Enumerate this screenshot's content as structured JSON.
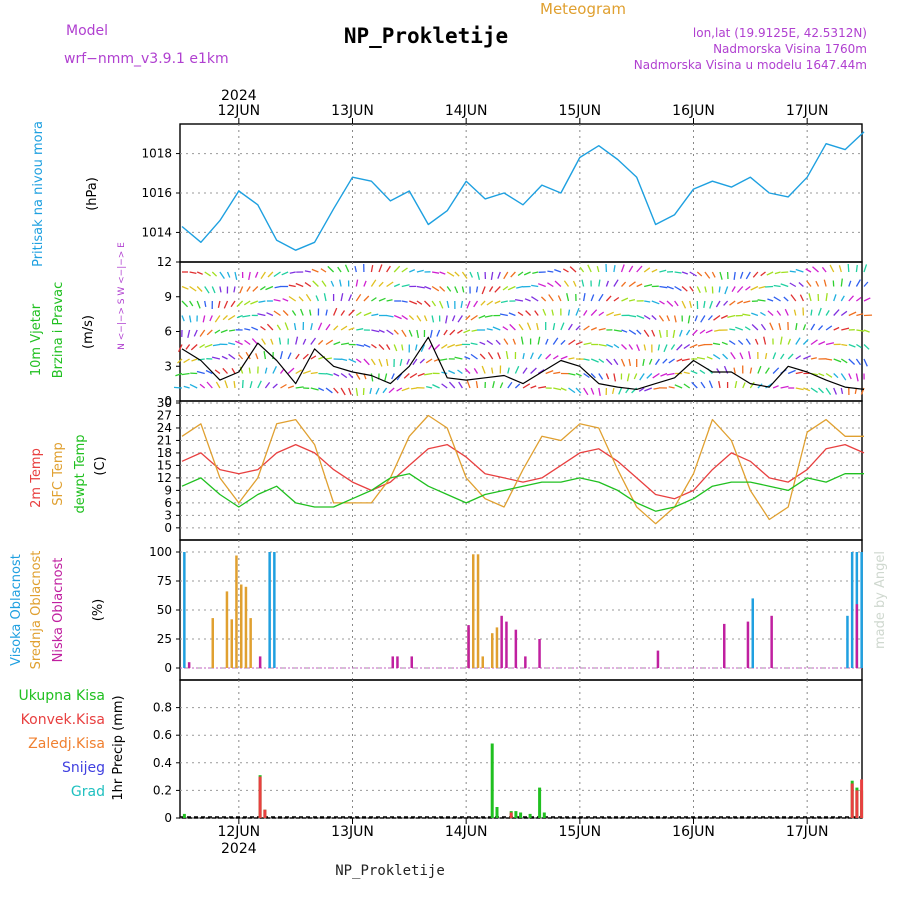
{
  "header": {
    "title": "NP_Prokletije",
    "subtitle": "Meteogram",
    "model_label": "Model",
    "model_name": "wrf−nmm_v3.9.1  e1km",
    "coords": "lon,lat (19.9125E, 42.5312N)",
    "altitude": "Nadmorska Visina 1760m",
    "model_altitude": "Nadmorska Visina u modelu 1647.44m",
    "footer": "NP_Prokletije",
    "watermark": "made by Angel"
  },
  "colors": {
    "pressure": "#1ea0e0",
    "temp2m": "#e84040",
    "sfc": "#e0a030",
    "dewpt": "#20c020",
    "high_cloud": "#20a0e0",
    "mid_cloud": "#e0a030",
    "low_cloud": "#c020a0",
    "total_precip": "#20c020",
    "conv_precip": "#e84040",
    "frozen_precip": "#f08030",
    "snow": "#4040e0",
    "graupel": "#20c0c0",
    "purple_text": "#b040d0",
    "orange_text": "#e0a030"
  },
  "chart_data": [
    {
      "type": "line",
      "name": "pressure",
      "ylabel_lines": [
        "Pritisak na nivou mora",
        "(hPa)"
      ],
      "ylim": [
        1012.5,
        1019.5
      ],
      "yticks": [
        1014,
        1016,
        1018
      ],
      "x_dates": [
        "2024",
        "12JUN",
        "13JUN",
        "14JUN",
        "15JUN",
        "16JUN",
        "17JUN"
      ],
      "x_hours": [
        0,
        4,
        8,
        12,
        16,
        20,
        24,
        28,
        32,
        36,
        40,
        44,
        48,
        52,
        56,
        60,
        64,
        68,
        72,
        76,
        80,
        84,
        88,
        92,
        96,
        100,
        104,
        108,
        112,
        116,
        120,
        124,
        128,
        132,
        136,
        140,
        144
      ],
      "series": [
        {
          "values": [
            1014.3,
            1013.5,
            1014.6,
            1016.1,
            1015.4,
            1013.6,
            1013.1,
            1013.5,
            1015.2,
            1016.8,
            1016.6,
            1015.6,
            1016.1,
            1014.4,
            1015.1,
            1016.6,
            1015.7,
            1016.0,
            1015.4,
            1016.4,
            1016.0,
            1017.8,
            1018.4,
            1017.7,
            1016.8,
            1014.4,
            1014.9,
            1016.2,
            1016.6,
            1016.3,
            1016.8,
            1016.0,
            1015.8,
            1016.8,
            1018.5,
            1018.2,
            1019.1
          ]
        }
      ]
    },
    {
      "type": "line",
      "name": "wind",
      "ylabel_lines": [
        "10m Vjetar",
        "Brzina i Pravac",
        "(m/s)"
      ],
      "compass_label": "N <−|−> S   W <−|−> E",
      "ylim": [
        0,
        12
      ],
      "yticks": [
        0,
        3,
        6,
        9,
        12
      ],
      "series": [
        {
          "values": [
            4.5,
            3.5,
            1.8,
            2.5,
            5.0,
            3.5,
            1.5,
            4.5,
            3.0,
            2.5,
            2.2,
            1.5,
            3.0,
            5.5,
            2.0,
            1.8,
            2.0,
            2.2,
            1.5,
            2.5,
            3.5,
            3.0,
            1.5,
            1.2,
            1.0,
            1.5,
            2.0,
            3.5,
            2.5,
            2.5,
            1.5,
            1.2,
            3.0,
            2.5,
            1.8,
            1.2,
            1.0
          ]
        }
      ]
    },
    {
      "type": "line",
      "name": "temperature",
      "ylabel_lines": [
        "2m Temp",
        "SFC Temp",
        "dewpt Temp",
        "(C)"
      ],
      "ylim": [
        -1,
        30
      ],
      "yticks": [
        0,
        3,
        6,
        9,
        12,
        15,
        18,
        21,
        24,
        27,
        30
      ],
      "series": [
        {
          "name": "2m Temp",
          "values": [
            16,
            18,
            14,
            13,
            14,
            18,
            20,
            18,
            14,
            11,
            9,
            11,
            15,
            19,
            20,
            17,
            13,
            12,
            11,
            12,
            15,
            18,
            19,
            16,
            12,
            8,
            7,
            9,
            14,
            18,
            16,
            12,
            11,
            14,
            19,
            20,
            18
          ]
        },
        {
          "name": "SFC Temp",
          "values": [
            22,
            25,
            12,
            6,
            12,
            25,
            26,
            20,
            6,
            6,
            6,
            12,
            22,
            27,
            24,
            12,
            7,
            5,
            14,
            22,
            21,
            25,
            24,
            14,
            5,
            1,
            5,
            13,
            26,
            21,
            9,
            2,
            5,
            23,
            26,
            22,
            22
          ]
        },
        {
          "name": "dewpt Temp",
          "values": [
            10,
            12,
            8,
            5,
            8,
            10,
            6,
            5,
            5,
            7,
            9,
            12,
            13,
            10,
            8,
            6,
            8,
            9,
            10,
            11,
            11,
            12,
            11,
            9,
            6,
            4,
            5,
            7,
            10,
            11,
            11,
            10,
            9,
            12,
            11,
            13,
            13
          ]
        }
      ]
    },
    {
      "type": "bar",
      "name": "clouds",
      "ylabel_lines": [
        "Visoka Oblacnost",
        "Srednja Oblacnost",
        "Niska Oblacnost",
        "(%)"
      ],
      "ylim": [
        0,
        100
      ],
      "yticks": [
        0,
        25,
        50,
        75,
        100
      ],
      "series": [
        {
          "name": "Visoka Oblacnost",
          "bars": [
            [
              0.5,
              100
            ],
            [
              18.5,
              100
            ],
            [
              19.5,
              100
            ],
            [
              120.5,
              60
            ],
            [
              140.5,
              45
            ],
            [
              141.5,
              100
            ],
            [
              142.5,
              100
            ],
            [
              143.5,
              100
            ]
          ]
        },
        {
          "name": "Srednja Oblacnost",
          "bars": [
            [
              6.5,
              43
            ],
            [
              9.5,
              66
            ],
            [
              10.5,
              42
            ],
            [
              11.5,
              97
            ],
            [
              12.5,
              72
            ],
            [
              13.5,
              70
            ],
            [
              14.5,
              43
            ],
            [
              60.5,
              35
            ],
            [
              61.5,
              98
            ],
            [
              62.5,
              98
            ],
            [
              63.5,
              10
            ],
            [
              65.5,
              30
            ],
            [
              66.5,
              35
            ]
          ]
        },
        {
          "name": "Niska Oblacnost",
          "bars": [
            [
              1.5,
              5
            ],
            [
              16.5,
              10
            ],
            [
              44.5,
              10
            ],
            [
              45.5,
              10
            ],
            [
              48.5,
              10
            ],
            [
              60.5,
              37
            ],
            [
              67.5,
              45
            ],
            [
              68.5,
              40
            ],
            [
              70.5,
              33
            ],
            [
              72.5,
              10
            ],
            [
              75.5,
              25
            ],
            [
              100.5,
              15
            ],
            [
              114.5,
              38
            ],
            [
              119.5,
              40
            ],
            [
              124.5,
              45
            ],
            [
              142.5,
              55
            ]
          ]
        }
      ]
    },
    {
      "type": "bar",
      "name": "precipitation",
      "ylabel_lines": [
        "1hr Precip (mm)"
      ],
      "legend": [
        "Ukupna Kisa",
        "Konvek.Kisa",
        "Zaledj.Kisa",
        "Snijeg",
        "Grad"
      ],
      "ylim": [
        0,
        1.0
      ],
      "yticks": [
        0,
        0.2,
        0.4,
        0.6,
        0.8
      ],
      "series": [
        {
          "name": "Ukupna Kisa",
          "bars": [
            [
              0.5,
              0.03
            ],
            [
              16.5,
              0.31
            ],
            [
              17.5,
              0.06
            ],
            [
              65.5,
              0.54
            ],
            [
              66.5,
              0.08
            ],
            [
              69.5,
              0.05
            ],
            [
              70.5,
              0.05
            ],
            [
              71.5,
              0.04
            ],
            [
              73.5,
              0.03
            ],
            [
              75.5,
              0.22
            ],
            [
              76.5,
              0.04
            ],
            [
              141.5,
              0.27
            ],
            [
              142.5,
              0.22
            ],
            [
              143.5,
              0.2
            ]
          ]
        },
        {
          "name": "Konvek.Kisa",
          "bars": [
            [
              16.5,
              0.3
            ],
            [
              17.5,
              0.06
            ],
            [
              69.5,
              0.04
            ],
            [
              141.5,
              0.25
            ],
            [
              142.5,
              0.2
            ],
            [
              143.5,
              0.28
            ]
          ]
        }
      ]
    }
  ]
}
